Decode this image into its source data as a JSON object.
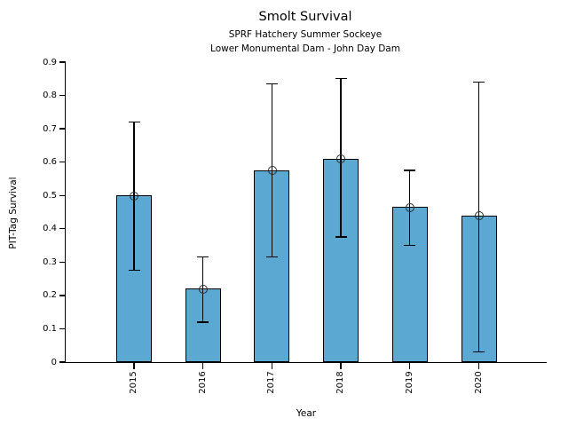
{
  "chart_data": {
    "type": "bar",
    "title": "Smolt Survival",
    "subtitle_line1": "SPRF Hatchery Summer Sockeye",
    "subtitle_line2": "Lower Monumental Dam - John Day Dam",
    "xlabel": "Year",
    "ylabel": "PIT-Tag Survival",
    "categories": [
      "2015",
      "2016",
      "2017",
      "2018",
      "2019",
      "2020"
    ],
    "values": [
      0.5,
      0.22,
      0.575,
      0.61,
      0.465,
      0.44
    ],
    "error_low": [
      0.275,
      0.12,
      0.315,
      0.375,
      0.35,
      0.03
    ],
    "error_high": [
      0.72,
      0.315,
      0.835,
      0.85,
      0.575,
      0.84
    ],
    "ylim": [
      0,
      0.9
    ],
    "yticks": [
      0,
      0.1,
      0.2,
      0.3,
      0.4,
      0.5,
      0.6,
      0.7,
      0.8,
      0.9
    ],
    "ytick_labels": [
      "0",
      "0.1",
      "0.2",
      "0.3",
      "0.4",
      "0.5",
      "0.6",
      "0.7",
      "0.8",
      "0.9"
    ],
    "x_tick_rotation_deg": 90,
    "grid": false,
    "bar_fill_color": "#5BA9D2",
    "bar_edge_color": "#000000",
    "errorbar_color": "#000000",
    "marker_style": "open-circle",
    "marker_color": "#2a2a2a",
    "axis_color": "#000000",
    "background_color": "#ffffff"
  }
}
